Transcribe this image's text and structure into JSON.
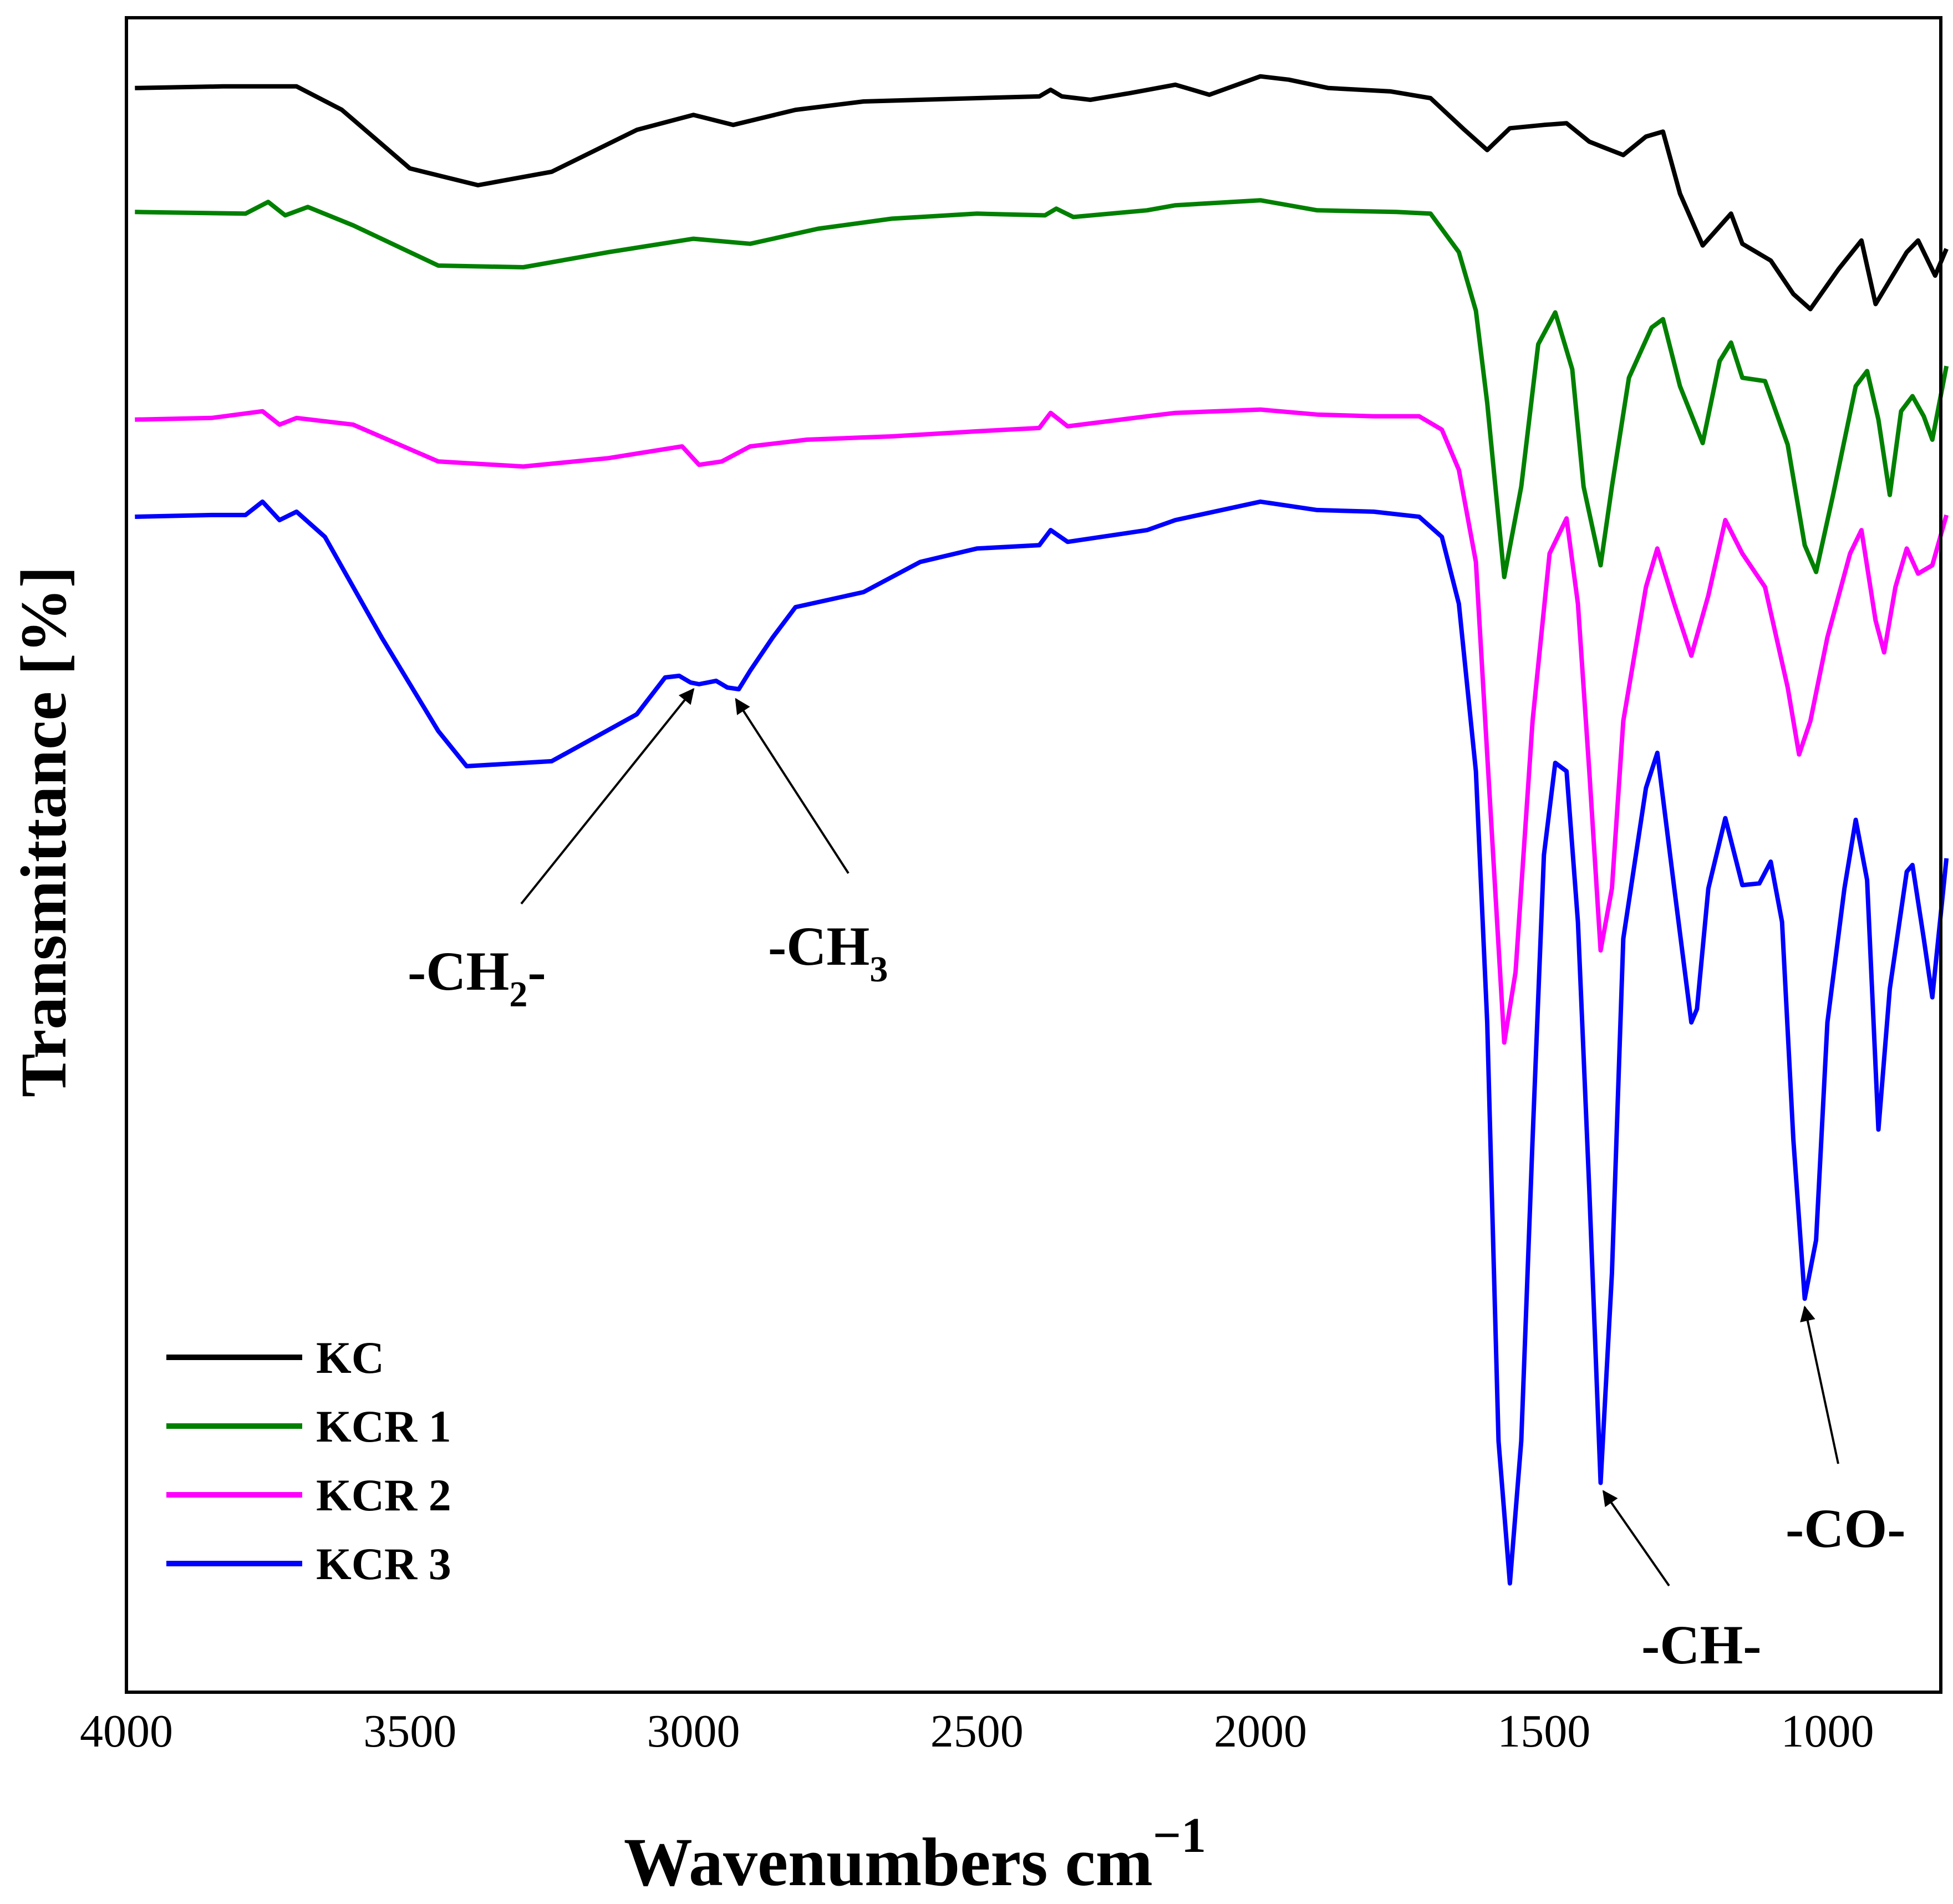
{
  "chart_data": {
    "type": "line",
    "title": "",
    "xlabel": "Wavenumbers cm",
    "xlabel_sup": "−1",
    "ylabel": "Transmittance [%]",
    "xlim": [
      4000,
      800
    ],
    "ylim": [
      0,
      100
    ],
    "x_ticks": [
      4000,
      3500,
      3000,
      2500,
      2000,
      1500,
      1000
    ],
    "y_ticks_shown": false,
    "grid": false,
    "legend_position": "bottom-left",
    "series": [
      {
        "name": "KC",
        "color": "#000000",
        "points": [
          [
            3985,
            95.8
          ],
          [
            3830,
            95.9
          ],
          [
            3700,
            95.9
          ],
          [
            3620,
            94.5
          ],
          [
            3500,
            91
          ],
          [
            3380,
            90
          ],
          [
            3250,
            90.8
          ],
          [
            3100,
            93.3
          ],
          [
            3000,
            94.2
          ],
          [
            2930,
            93.6
          ],
          [
            2820,
            94.5
          ],
          [
            2700,
            95
          ],
          [
            2500,
            95.2
          ],
          [
            2390,
            95.3
          ],
          [
            2370,
            95.7
          ],
          [
            2350,
            95.3
          ],
          [
            2300,
            95.1
          ],
          [
            2230,
            95.5
          ],
          [
            2150,
            96
          ],
          [
            2090,
            95.4
          ],
          [
            2000,
            96.5
          ],
          [
            1950,
            96.3
          ],
          [
            1880,
            95.8
          ],
          [
            1770,
            95.6
          ],
          [
            1700,
            95.2
          ],
          [
            1640,
            93.3
          ],
          [
            1600,
            92.1
          ],
          [
            1560,
            93.4
          ],
          [
            1500,
            93.6
          ],
          [
            1460,
            93.7
          ],
          [
            1420,
            92.6
          ],
          [
            1390,
            92.2
          ],
          [
            1360,
            91.8
          ],
          [
            1320,
            92.9
          ],
          [
            1290,
            93.2
          ],
          [
            1260,
            89.5
          ],
          [
            1220,
            86.4
          ],
          [
            1170,
            88.3
          ],
          [
            1150,
            86.5
          ],
          [
            1100,
            85.5
          ],
          [
            1060,
            83.5
          ],
          [
            1030,
            82.6
          ],
          [
            980,
            85
          ],
          [
            940,
            86.7
          ],
          [
            915,
            82.9
          ],
          [
            860,
            86
          ],
          [
            840,
            86.7
          ],
          [
            810,
            84.6
          ],
          [
            790,
            86.2
          ]
        ]
      },
      {
        "name": "KCR 1",
        "color": "#008000",
        "points": [
          [
            3985,
            88.4
          ],
          [
            3790,
            88.3
          ],
          [
            3750,
            89
          ],
          [
            3720,
            88.2
          ],
          [
            3680,
            88.7
          ],
          [
            3600,
            87.6
          ],
          [
            3450,
            85.2
          ],
          [
            3300,
            85.1
          ],
          [
            3150,
            86
          ],
          [
            3000,
            86.8
          ],
          [
            2900,
            86.5
          ],
          [
            2780,
            87.4
          ],
          [
            2650,
            88
          ],
          [
            2500,
            88.3
          ],
          [
            2380,
            88.2
          ],
          [
            2360,
            88.6
          ],
          [
            2330,
            88.1
          ],
          [
            2200,
            88.5
          ],
          [
            2150,
            88.8
          ],
          [
            2000,
            89.1
          ],
          [
            1900,
            88.5
          ],
          [
            1760,
            88.4
          ],
          [
            1700,
            88.3
          ],
          [
            1650,
            86
          ],
          [
            1620,
            82.5
          ],
          [
            1600,
            77
          ],
          [
            1570,
            66.6
          ],
          [
            1540,
            72
          ],
          [
            1510,
            80.5
          ],
          [
            1480,
            82.4
          ],
          [
            1450,
            79
          ],
          [
            1430,
            72
          ],
          [
            1400,
            67.3
          ],
          [
            1380,
            72
          ],
          [
            1350,
            78.5
          ],
          [
            1310,
            81.5
          ],
          [
            1290,
            82
          ],
          [
            1260,
            78
          ],
          [
            1220,
            74.6
          ],
          [
            1190,
            79.5
          ],
          [
            1170,
            80.6
          ],
          [
            1150,
            78.5
          ],
          [
            1110,
            78.3
          ],
          [
            1070,
            74.5
          ],
          [
            1040,
            68.5
          ],
          [
            1020,
            66.9
          ],
          [
            990,
            71.5
          ],
          [
            950,
            78
          ],
          [
            930,
            78.9
          ],
          [
            910,
            76
          ],
          [
            890,
            71.5
          ],
          [
            870,
            76.5
          ],
          [
            850,
            77.4
          ],
          [
            830,
            76.2
          ],
          [
            815,
            74.8
          ],
          [
            790,
            79.2
          ]
        ]
      },
      {
        "name": "KCR 2",
        "color": "#ff00ff",
        "points": [
          [
            3985,
            76
          ],
          [
            3850,
            76.1
          ],
          [
            3760,
            76.5
          ],
          [
            3730,
            75.7
          ],
          [
            3700,
            76.1
          ],
          [
            3600,
            75.7
          ],
          [
            3450,
            73.5
          ],
          [
            3300,
            73.2
          ],
          [
            3150,
            73.7
          ],
          [
            3020,
            74.4
          ],
          [
            2990,
            73.3
          ],
          [
            2950,
            73.5
          ],
          [
            2900,
            74.4
          ],
          [
            2800,
            74.8
          ],
          [
            2650,
            75
          ],
          [
            2500,
            75.3
          ],
          [
            2390,
            75.5
          ],
          [
            2370,
            76.4
          ],
          [
            2340,
            75.6
          ],
          [
            2200,
            76.2
          ],
          [
            2150,
            76.4
          ],
          [
            2000,
            76.6
          ],
          [
            1900,
            76.3
          ],
          [
            1800,
            76.2
          ],
          [
            1720,
            76.2
          ],
          [
            1680,
            75.4
          ],
          [
            1650,
            73
          ],
          [
            1620,
            67.5
          ],
          [
            1600,
            56
          ],
          [
            1570,
            38.8
          ],
          [
            1550,
            43
          ],
          [
            1520,
            58
          ],
          [
            1490,
            68
          ],
          [
            1460,
            70.1
          ],
          [
            1440,
            65
          ],
          [
            1420,
            55
          ],
          [
            1400,
            44.3
          ],
          [
            1380,
            48
          ],
          [
            1360,
            58
          ],
          [
            1320,
            66
          ],
          [
            1300,
            68.3
          ],
          [
            1270,
            65
          ],
          [
            1240,
            61.9
          ],
          [
            1210,
            65.5
          ],
          [
            1180,
            70
          ],
          [
            1150,
            68
          ],
          [
            1110,
            66
          ],
          [
            1070,
            60
          ],
          [
            1050,
            56
          ],
          [
            1030,
            58
          ],
          [
            1000,
            63
          ],
          [
            960,
            68
          ],
          [
            940,
            69.4
          ],
          [
            915,
            64
          ],
          [
            900,
            62.1
          ],
          [
            880,
            66
          ],
          [
            860,
            68.3
          ],
          [
            840,
            66.8
          ],
          [
            815,
            67.3
          ],
          [
            790,
            70.3
          ]
        ]
      },
      {
        "name": "KCR 3",
        "color": "#0000ff",
        "points": [
          [
            3985,
            70.2
          ],
          [
            3850,
            70.3
          ],
          [
            3790,
            70.3
          ],
          [
            3760,
            71.1
          ],
          [
            3730,
            70
          ],
          [
            3700,
            70.5
          ],
          [
            3650,
            69
          ],
          [
            3550,
            63
          ],
          [
            3450,
            57.4
          ],
          [
            3400,
            55.3
          ],
          [
            3300,
            55.5
          ],
          [
            3250,
            55.6
          ],
          [
            3100,
            58.4
          ],
          [
            3050,
            60.6
          ],
          [
            3025,
            60.7
          ],
          [
            3005,
            60.3
          ],
          [
            2990,
            60.2
          ],
          [
            2960,
            60.4
          ],
          [
            2940,
            60
          ],
          [
            2920,
            59.9
          ],
          [
            2900,
            61
          ],
          [
            2860,
            63
          ],
          [
            2820,
            64.8
          ],
          [
            2700,
            65.7
          ],
          [
            2600,
            67.5
          ],
          [
            2500,
            68.3
          ],
          [
            2390,
            68.5
          ],
          [
            2370,
            69.4
          ],
          [
            2340,
            68.7
          ],
          [
            2200,
            69.4
          ],
          [
            2150,
            70
          ],
          [
            2000,
            71.1
          ],
          [
            1900,
            70.6
          ],
          [
            1800,
            70.5
          ],
          [
            1720,
            70.2
          ],
          [
            1680,
            69
          ],
          [
            1650,
            65
          ],
          [
            1620,
            55
          ],
          [
            1600,
            40
          ],
          [
            1580,
            15
          ],
          [
            1560,
            6.5
          ],
          [
            1540,
            15
          ],
          [
            1520,
            33
          ],
          [
            1500,
            50
          ],
          [
            1480,
            55.5
          ],
          [
            1460,
            55
          ],
          [
            1440,
            46
          ],
          [
            1420,
            30
          ],
          [
            1400,
            12.5
          ],
          [
            1380,
            25
          ],
          [
            1360,
            45
          ],
          [
            1320,
            54
          ],
          [
            1300,
            56.1
          ],
          [
            1270,
            48
          ],
          [
            1240,
            40
          ],
          [
            1230,
            40.8
          ],
          [
            1210,
            48
          ],
          [
            1180,
            52.2
          ],
          [
            1150,
            48.2
          ],
          [
            1120,
            48.3
          ],
          [
            1100,
            49.6
          ],
          [
            1080,
            46
          ],
          [
            1060,
            33
          ],
          [
            1040,
            23.5
          ],
          [
            1020,
            27
          ],
          [
            1000,
            40
          ],
          [
            970,
            48
          ],
          [
            950,
            52.1
          ],
          [
            930,
            48.5
          ],
          [
            910,
            33.6
          ],
          [
            890,
            42
          ],
          [
            860,
            49
          ],
          [
            850,
            49.4
          ],
          [
            830,
            45
          ],
          [
            815,
            41.5
          ],
          [
            790,
            49.8
          ]
        ]
      }
    ],
    "annotations": [
      {
        "text": "-CH",
        "sub": "2",
        "suffix": "-",
        "target": [
          3000,
          59.9
        ]
      },
      {
        "text": "-CH",
        "sub": "3",
        "suffix": "",
        "target": [
          2925,
          59.3
        ]
      },
      {
        "text": "-CH-",
        "sub": "",
        "suffix": "",
        "target": [
          1395,
          12
        ]
      },
      {
        "text": "-CO-",
        "sub": "",
        "suffix": "",
        "target": [
          1040,
          23
        ]
      }
    ]
  }
}
